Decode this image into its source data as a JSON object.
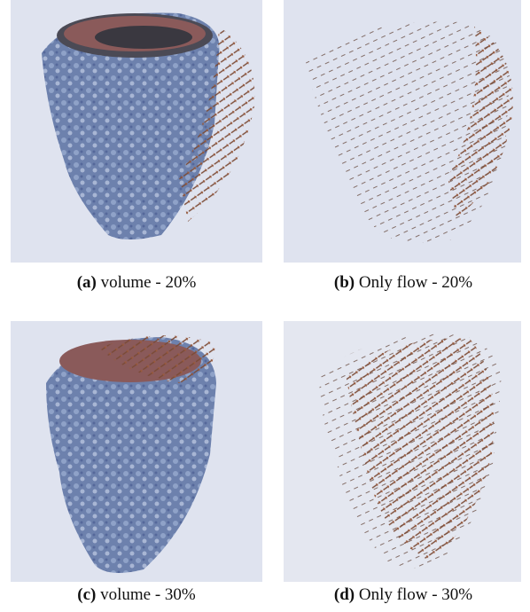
{
  "figure": {
    "panels": [
      {
        "label": "(a)",
        "caption": "volume - 20%"
      },
      {
        "label": "(b)",
        "caption": "Only flow - 20%"
      },
      {
        "label": "(c)",
        "caption": "volume - 30%"
      },
      {
        "label": "(d)",
        "caption": "Only flow - 30%"
      }
    ]
  }
}
